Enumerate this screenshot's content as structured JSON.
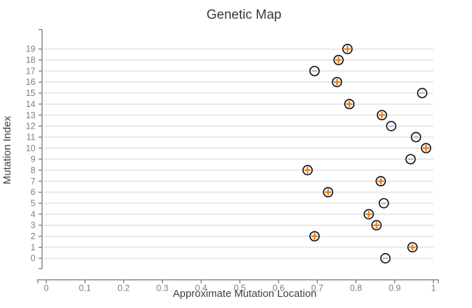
{
  "chart_data": {
    "type": "scatter",
    "title": "Genetic Map",
    "xlabel": "Approximate Mutation Location",
    "ylabel": "Mutation Index",
    "xlim": [
      0,
      1
    ],
    "ylim": [
      0,
      19
    ],
    "grid": "horizontal",
    "legend": "none",
    "x_tick_values": [
      0,
      0.1,
      0.2,
      0.3,
      0.4,
      0.5,
      0.6,
      0.7,
      0.8,
      0.9,
      1
    ],
    "x_tick_labels": [
      "0",
      "0.1",
      "0.2",
      "0.3",
      "0.4",
      "0.5",
      "0.6",
      "0.7",
      "0.8",
      "0.9",
      "1"
    ],
    "y_tick_labels": [
      "0",
      "1",
      "2",
      "3",
      "4",
      "5",
      "6",
      "7",
      "8",
      "9",
      "10",
      "11",
      "12",
      "13",
      "14",
      "15",
      "16",
      "17",
      "18",
      "19"
    ],
    "points": [
      {
        "index": 0,
        "x": 0.876,
        "marker": "minus"
      },
      {
        "index": 1,
        "x": 0.946,
        "marker": "plus"
      },
      {
        "index": 2,
        "x": 0.693,
        "marker": "plus"
      },
      {
        "index": 3,
        "x": 0.853,
        "marker": "plus"
      },
      {
        "index": 4,
        "x": 0.833,
        "marker": "plus"
      },
      {
        "index": 5,
        "x": 0.872,
        "marker": "minus"
      },
      {
        "index": 6,
        "x": 0.728,
        "marker": "plus"
      },
      {
        "index": 7,
        "x": 0.864,
        "marker": "plus"
      },
      {
        "index": 8,
        "x": 0.675,
        "marker": "plus"
      },
      {
        "index": 9,
        "x": 0.941,
        "marker": "minus"
      },
      {
        "index": 10,
        "x": 0.981,
        "marker": "plus"
      },
      {
        "index": 11,
        "x": 0.955,
        "marker": "minus"
      },
      {
        "index": 12,
        "x": 0.891,
        "marker": "minus"
      },
      {
        "index": 13,
        "x": 0.867,
        "marker": "plus"
      },
      {
        "index": 14,
        "x": 0.783,
        "marker": "plus"
      },
      {
        "index": 15,
        "x": 0.971,
        "marker": "minus"
      },
      {
        "index": 16,
        "x": 0.751,
        "marker": "plus"
      },
      {
        "index": 17,
        "x": 0.693,
        "marker": "minus"
      },
      {
        "index": 18,
        "x": 0.755,
        "marker": "plus"
      },
      {
        "index": 19,
        "x": 0.778,
        "marker": "plus"
      }
    ],
    "marker_colors": {
      "plus": "#e87e1e",
      "minus": "#b2b2d8"
    },
    "circle_style": {
      "fill": "#ffffff",
      "stroke": "#141414"
    }
  }
}
